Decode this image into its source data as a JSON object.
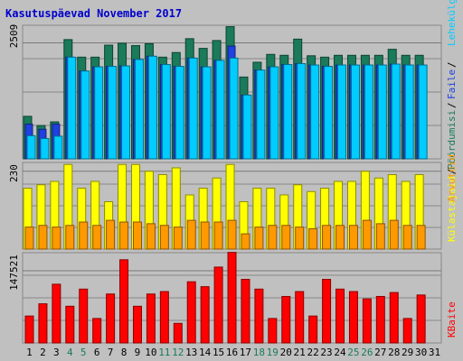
{
  "chart_data": {
    "type": "bar",
    "title": "Kasutuspäevad November 2017",
    "x": [
      1,
      2,
      3,
      4,
      5,
      6,
      7,
      8,
      9,
      10,
      11,
      12,
      13,
      14,
      15,
      16,
      17,
      18,
      19,
      20,
      21,
      22,
      23,
      24,
      25,
      26,
      27,
      28,
      29,
      30,
      31
    ],
    "weekend_days": [
      4,
      5,
      11,
      12,
      18,
      19,
      25,
      26
    ],
    "top_panel": {
      "y_tick_label": "2509",
      "y_tick_value": 2509,
      "ylim": [
        0,
        2890
      ],
      "right_labels": [
        "Pöördumisi",
        "Faile",
        "Lehekülgi"
      ],
      "series": [
        {
          "name": "Pöördumisi",
          "color": "#1a7a5a",
          "values": [
            920,
            720,
            800,
            2580,
            2200,
            2200,
            2460,
            2500,
            2450,
            2490,
            2200,
            2300,
            2600,
            2390,
            2560,
            2860,
            1770,
            2090,
            2260,
            2240,
            2590,
            2230,
            2200,
            2240,
            2240,
            2240,
            2240,
            2370,
            2240,
            2240,
            null
          ]
        },
        {
          "name": "Faile",
          "color": "#2040e0",
          "values": [
            750,
            640,
            750,
            2200,
            1900,
            1990,
            2000,
            2010,
            2150,
            2220,
            2040,
            2000,
            2180,
            1990,
            2130,
            2440,
            1380,
            1920,
            1990,
            2040,
            2060,
            2030,
            2000,
            2030,
            2030,
            2030,
            2030,
            2050,
            2030,
            2030,
            null
          ]
        },
        {
          "name": "Lehekülgi",
          "color": "#00ccff",
          "values": [
            500,
            440,
            490,
            2200,
            1900,
            1990,
            2000,
            2010,
            2150,
            2220,
            2040,
            2000,
            2180,
            1990,
            2130,
            2180,
            1380,
            1920,
            1990,
            2040,
            2060,
            2030,
            2000,
            2030,
            2030,
            2030,
            2030,
            2050,
            2030,
            2030,
            null
          ]
        }
      ]
    },
    "middle_panel": {
      "y_tick_label": "230",
      "y_tick_value": 230,
      "ylim": [
        0,
        256
      ],
      "right_labels": [
        "Külastajaid",
        "Arvuteid"
      ],
      "series": [
        {
          "name": "Külastajaid",
          "color": "#ffff00",
          "values": [
            180,
            190,
            200,
            250,
            180,
            200,
            140,
            250,
            250,
            230,
            220,
            240,
            160,
            180,
            210,
            250,
            140,
            180,
            180,
            160,
            190,
            170,
            180,
            200,
            200,
            230,
            210,
            220,
            200,
            220,
            null
          ]
        },
        {
          "name": "Arvuteid",
          "color": "#ff9900",
          "values": [
            65,
            70,
            65,
            70,
            80,
            70,
            85,
            80,
            80,
            75,
            70,
            65,
            85,
            80,
            80,
            85,
            45,
            65,
            70,
            70,
            65,
            60,
            70,
            70,
            70,
            85,
            75,
            85,
            70,
            70,
            null
          ]
        }
      ]
    },
    "bottom_panel": {
      "y_tick_label": "147521",
      "y_tick_value": 147521,
      "ylim": [
        0,
        184400
      ],
      "right_labels": [
        "KBaite"
      ],
      "series": [
        {
          "name": "KBaite",
          "color": "#ff0000",
          "values": [
            55000,
            80000,
            120000,
            75000,
            110000,
            50000,
            100000,
            170000,
            75000,
            100000,
            105000,
            40000,
            125000,
            115000,
            155000,
            185000,
            130000,
            110000,
            50000,
            95000,
            105000,
            55000,
            130000,
            110000,
            105000,
            90000,
            95000,
            103000,
            50000,
            98000,
            null
          ]
        }
      ]
    }
  }
}
